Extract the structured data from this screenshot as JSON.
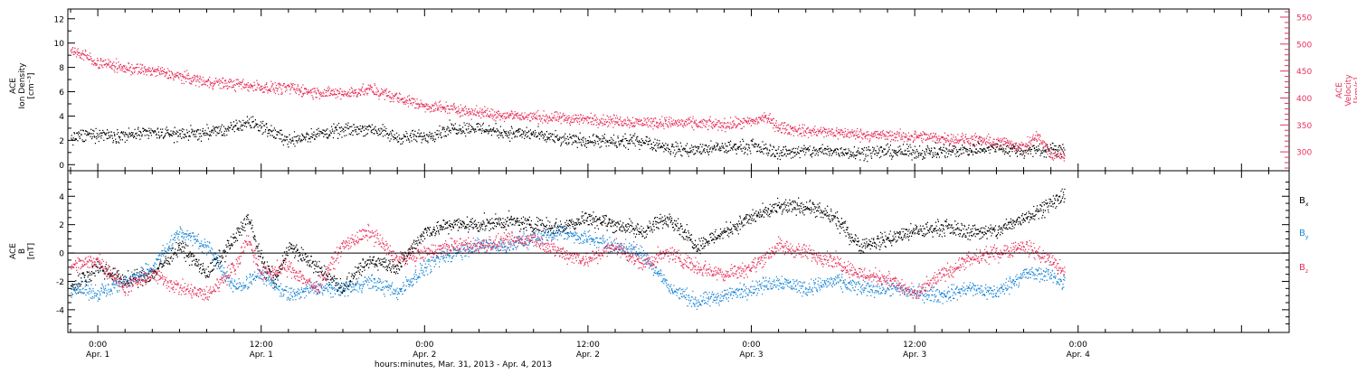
{
  "colors": {
    "density": "#000000",
    "velocity": "#e8305a",
    "bx": "#000000",
    "by": "#1a86d6",
    "bz": "#e8305a",
    "axis": "#000000"
  },
  "x_axis": {
    "title": "hours:minutes, Mar. 31, 2013 - Apr.  4, 2013",
    "range_hours": [
      -2.2,
      87.5
    ],
    "major_ticks": [
      {
        "hour": 0,
        "time": "0:00",
        "date": "Apr. 1"
      },
      {
        "hour": 12,
        "time": "12:00",
        "date": "Apr. 1"
      },
      {
        "hour": 24,
        "time": "0:00",
        "date": "Apr. 2"
      },
      {
        "hour": 36,
        "time": "12:00",
        "date": "Apr. 2"
      },
      {
        "hour": 48,
        "time": "0:00",
        "date": "Apr. 3"
      },
      {
        "hour": 60,
        "time": "12:00",
        "date": "Apr. 3"
      },
      {
        "hour": 72,
        "time": "0:00",
        "date": "Apr. 4"
      }
    ]
  },
  "chart_data": [
    {
      "type": "scatter",
      "panel": "top",
      "left_axis": {
        "label_lines": [
          "ACE",
          "Ion Density",
          "[cm⁻³]"
        ],
        "ylim": [
          -0.5,
          12.8
        ],
        "ticks": [
          0,
          2,
          4,
          6,
          8,
          10,
          12
        ]
      },
      "right_axis": {
        "label_lines": [
          "ACE",
          "Velocity",
          "[km/s]"
        ],
        "ylim": [
          265,
          565
        ],
        "ticks": [
          300,
          350,
          400,
          450,
          500,
          550
        ]
      },
      "series": [
        {
          "key": "density",
          "axis": "left",
          "x": [
            -2,
            0,
            2,
            4,
            6,
            8,
            10,
            11,
            12,
            14,
            16,
            18,
            20,
            22,
            24,
            26,
            28,
            30,
            32,
            34,
            36,
            38,
            40,
            42,
            44,
            46,
            48,
            50,
            52,
            54,
            56,
            58,
            60,
            62,
            64,
            66,
            68,
            69,
            70,
            71
          ],
          "y": [
            2.2,
            2.5,
            2.4,
            2.6,
            2.5,
            2.6,
            3.0,
            3.5,
            3.1,
            2.0,
            2.5,
            2.8,
            3.0,
            2.2,
            2.3,
            3.0,
            3.0,
            2.6,
            2.5,
            2.0,
            2.0,
            1.8,
            2.0,
            1.3,
            1.2,
            1.4,
            1.5,
            1.0,
            1.1,
            1.1,
            1.0,
            1.1,
            1.0,
            1.1,
            1.2,
            1.4,
            1.1,
            1.2,
            1.3,
            1.1
          ]
        },
        {
          "key": "velocity",
          "axis": "right",
          "x": [
            -2,
            0,
            2,
            4,
            6,
            8,
            10,
            12,
            14,
            16,
            18,
            20,
            22,
            24,
            26,
            28,
            30,
            32,
            34,
            36,
            38,
            40,
            42,
            44,
            46,
            48,
            49,
            50,
            52,
            54,
            56,
            58,
            60,
            62,
            64,
            66,
            67,
            68,
            69,
            70,
            71
          ],
          "y": [
            490,
            465,
            455,
            450,
            440,
            430,
            425,
            420,
            418,
            410,
            408,
            415,
            400,
            385,
            380,
            372,
            368,
            364,
            362,
            360,
            357,
            355,
            354,
            352,
            350,
            355,
            365,
            345,
            338,
            336,
            332,
            330,
            328,
            325,
            322,
            318,
            315,
            308,
            330,
            292,
            295
          ]
        }
      ]
    },
    {
      "type": "scatter",
      "panel": "bottom",
      "y_axis": {
        "label_lines": [
          "ACE",
          "B",
          "[nT]"
        ],
        "ylim": [
          -5.6,
          5.8
        ],
        "ticks": [
          -4,
          -2,
          0,
          2,
          4
        ]
      },
      "legend": [
        "Bx",
        "By",
        "Bz"
      ],
      "zero_line": true,
      "series": [
        {
          "key": "bx",
          "x": [
            -2,
            0,
            2,
            4,
            6,
            8,
            10,
            11,
            12,
            13,
            14,
            16,
            18,
            20,
            22,
            24,
            26,
            28,
            30,
            32,
            34,
            36,
            38,
            40,
            42,
            44,
            46,
            48,
            50,
            52,
            54,
            56,
            58,
            60,
            62,
            64,
            66,
            68,
            70,
            71
          ],
          "y": [
            -2.5,
            -1.0,
            -2.0,
            -1.5,
            0.5,
            -1.5,
            1.0,
            2.5,
            -0.5,
            -2.0,
            0.5,
            -1.0,
            -2.5,
            -0.5,
            -1.0,
            1.5,
            2.0,
            2.0,
            2.2,
            2.0,
            1.8,
            2.5,
            2.0,
            1.5,
            2.5,
            0.5,
            1.5,
            2.5,
            3.2,
            3.3,
            2.5,
            0.5,
            1.0,
            1.5,
            1.8,
            1.5,
            1.5,
            2.5,
            3.5,
            4.0
          ]
        },
        {
          "key": "by",
          "x": [
            -2,
            0,
            2,
            4,
            6,
            8,
            10,
            12,
            14,
            16,
            18,
            20,
            22,
            24,
            26,
            28,
            30,
            32,
            34,
            36,
            38,
            40,
            42,
            44,
            46,
            48,
            50,
            52,
            54,
            56,
            58,
            60,
            62,
            64,
            66,
            68,
            70,
            71
          ],
          "y": [
            -2.5,
            -2.8,
            -2.0,
            -1.0,
            1.5,
            0.5,
            -2.5,
            -1.5,
            -3.0,
            -2.5,
            -2.5,
            -2.0,
            -2.8,
            -1.0,
            0.0,
            0.5,
            0.5,
            1.0,
            1.5,
            1.0,
            0.5,
            0.0,
            -2.5,
            -3.5,
            -3.0,
            -2.5,
            -2.0,
            -2.5,
            -2.0,
            -2.5,
            -2.5,
            -2.8,
            -3.0,
            -2.5,
            -2.8,
            -1.5,
            -1.5,
            -2.2
          ]
        },
        {
          "key": "bz",
          "x": [
            -2,
            0,
            2,
            4,
            6,
            8,
            10,
            11,
            12,
            14,
            16,
            18,
            20,
            22,
            24,
            26,
            28,
            30,
            32,
            34,
            36,
            38,
            40,
            42,
            44,
            46,
            48,
            50,
            52,
            54,
            56,
            58,
            60,
            62,
            64,
            66,
            68,
            70,
            71
          ],
          "y": [
            -1.0,
            -0.5,
            -2.5,
            -1.5,
            -2.5,
            -3.0,
            -1.0,
            1.0,
            -1.5,
            -1.0,
            -2.5,
            0.5,
            1.5,
            -0.5,
            0.0,
            0.5,
            0.5,
            0.8,
            1.0,
            0.0,
            -0.5,
            0.5,
            -0.8,
            0.0,
            -1.0,
            -1.5,
            -1.0,
            0.5,
            0.0,
            -0.5,
            -1.5,
            -1.8,
            -3.0,
            -1.5,
            -0.5,
            0.0,
            0.5,
            -0.5,
            -1.5
          ]
        }
      ]
    }
  ]
}
